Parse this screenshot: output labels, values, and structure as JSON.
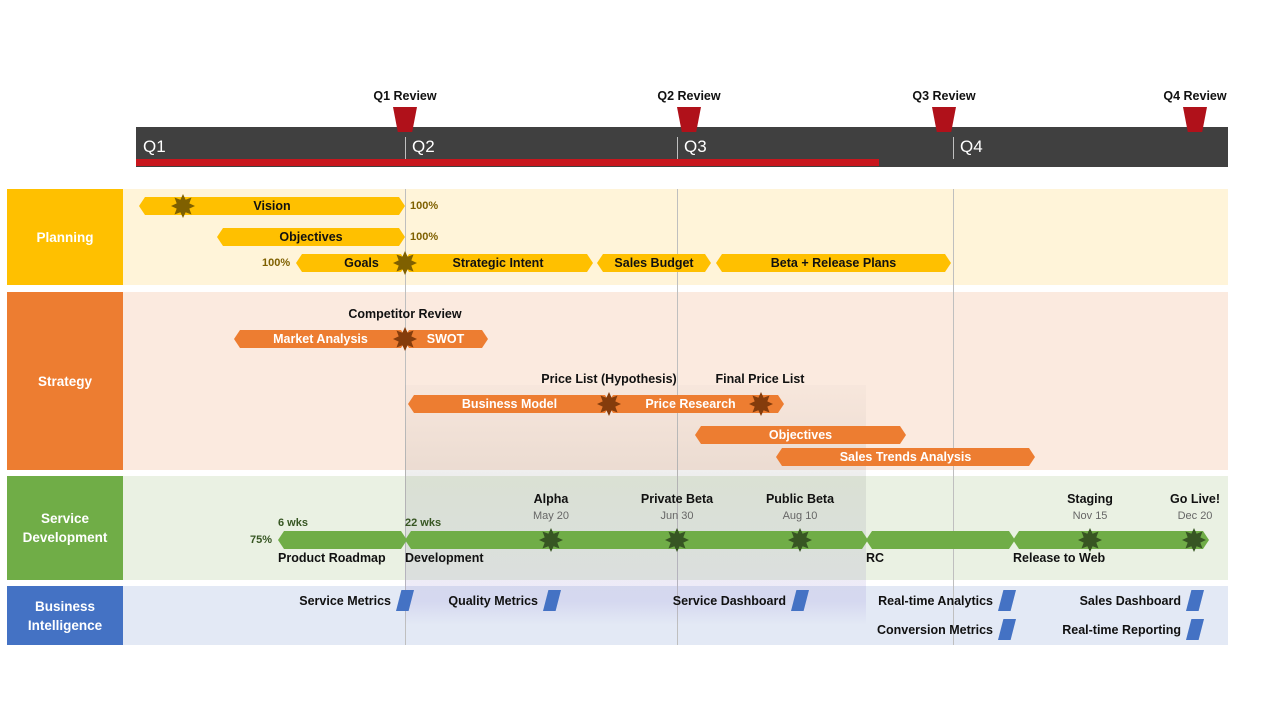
{
  "timeline": {
    "quarters": [
      "Q1",
      "Q2",
      "Q3",
      "Q4"
    ],
    "reviews": [
      "Q1 Review",
      "Q2 Review",
      "Q3 Review",
      "Q4 Review"
    ],
    "progress_color": "#C8161D"
  },
  "rows": {
    "planning": {
      "label": "Planning",
      "color": "#FFC000"
    },
    "strategy": {
      "label": "Strategy",
      "color": "#ED7D31"
    },
    "service": {
      "label": "Service Development",
      "color": "#70AD47"
    },
    "bi": {
      "label": "Business Intelligence",
      "color": "#4472C4"
    }
  },
  "planning": {
    "vision": "Vision",
    "vision_pct": "100%",
    "objectives": "Objectives",
    "objectives_pct": "100%",
    "goals": "Goals",
    "goals_pct": "100%",
    "strategic_intent": "Strategic Intent",
    "sales_budget": "Sales Budget",
    "beta_release": "Beta + Release Plans"
  },
  "strategy": {
    "competitor_review": "Competitor Review",
    "market_analysis": "Market Analysis",
    "swot": "SWOT",
    "price_list_hyp": "Price List (Hypothesis)",
    "final_price_list": "Final Price List",
    "business_model": "Business Model",
    "price_research": "Price Research",
    "objectives": "Objectives",
    "sales_trends": "Sales Trends Analysis"
  },
  "service": {
    "product_roadmap": "Product Roadmap",
    "roadmap_pct": "75%",
    "roadmap_dur": "6 wks",
    "development": "Development",
    "development_dur": "22 wks",
    "rc": "RC",
    "release_to_web": "Release to Web",
    "milestones": [
      {
        "label": "Alpha",
        "date": "May 20"
      },
      {
        "label": "Private Beta",
        "date": "Jun 30"
      },
      {
        "label": "Public Beta",
        "date": "Aug 10"
      },
      {
        "label": "Staging",
        "date": "Nov 15"
      },
      {
        "label": "Go Live!",
        "date": "Dec 20"
      }
    ]
  },
  "bi": {
    "items": [
      "Service Metrics",
      "Quality Metrics",
      "Service Dashboard",
      "Real-time Analytics",
      "Sales Dashboard",
      "Conversion Metrics",
      "Real-time Reporting"
    ]
  }
}
